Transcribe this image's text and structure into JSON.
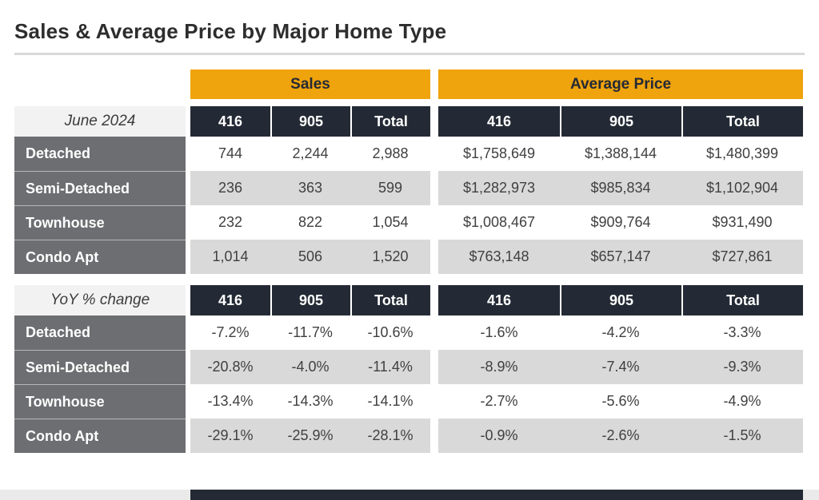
{
  "title": "Sales & Average Price by Major Home Type",
  "colors": {
    "accent_orange": "#EFA30C",
    "header_navy": "#242A35",
    "row_label_gray": "#6D6E71",
    "stripe_gray": "#D9D9D9",
    "section_label_bg": "#F2F2F2",
    "divider_gray": "#D9D9D9"
  },
  "chart_data": {
    "type": "table",
    "title": "Sales & Average Price by Major Home Type",
    "column_groups": [
      {
        "label": "Sales"
      },
      {
        "label": "Average Price"
      }
    ],
    "sub_columns": [
      "416",
      "905",
      "Total"
    ],
    "sections": [
      {
        "label": "June 2024",
        "rows": [
          {
            "label": "Detached",
            "cells": [
              "744",
              "2,244",
              "2,988",
              "$1,758,649",
              "$1,388,144",
              "$1,480,399"
            ]
          },
          {
            "label": "Semi-Detached",
            "cells": [
              "236",
              "363",
              "599",
              "$1,282,973",
              "$985,834",
              "$1,102,904"
            ]
          },
          {
            "label": "Townhouse",
            "cells": [
              "232",
              "822",
              "1,054",
              "$1,008,467",
              "$909,764",
              "$931,490"
            ]
          },
          {
            "label": "Condo Apt",
            "cells": [
              "1,014",
              "506",
              "1,520",
              "$763,148",
              "$657,147",
              "$727,861"
            ]
          }
        ]
      },
      {
        "label": "YoY % change",
        "rows": [
          {
            "label": "Detached",
            "cells": [
              "-7.2%",
              "-11.7%",
              "-10.6%",
              "-1.6%",
              "-4.2%",
              "-3.3%"
            ]
          },
          {
            "label": "Semi-Detached",
            "cells": [
              "-20.8%",
              "-4.0%",
              "-11.4%",
              "-8.9%",
              "-7.4%",
              "-9.3%"
            ]
          },
          {
            "label": "Townhouse",
            "cells": [
              "-13.4%",
              "-14.3%",
              "-14.1%",
              "-2.7%",
              "-5.6%",
              "-4.9%"
            ]
          },
          {
            "label": "Condo Apt",
            "cells": [
              "-29.1%",
              "-25.9%",
              "-28.1%",
              "-0.9%",
              "-2.6%",
              "-1.5%"
            ]
          }
        ]
      }
    ]
  }
}
